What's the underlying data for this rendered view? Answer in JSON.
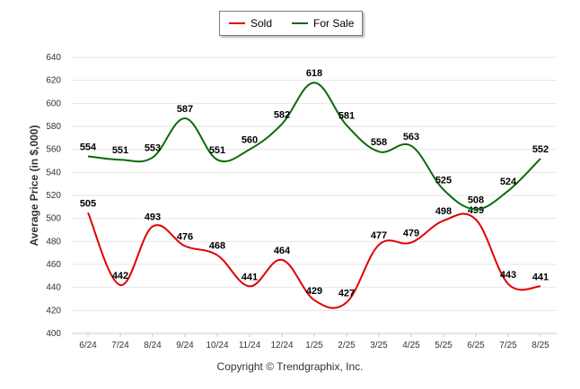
{
  "colors": {
    "sold": "#e00000",
    "for_sale": "#0b6a0b",
    "grid": "#e6e6e6"
  },
  "footer": {
    "copyright": "Copyright © Trendgraphix, Inc."
  },
  "chart_data": {
    "type": "line",
    "title": "",
    "xlabel": "",
    "ylabel": "Average Price (in $,000)",
    "categories": [
      "6/24",
      "7/24",
      "8/24",
      "9/24",
      "10/24",
      "11/24",
      "12/24",
      "1/25",
      "2/25",
      "3/25",
      "4/25",
      "5/25",
      "6/25",
      "7/25",
      "8/25"
    ],
    "ylim": [
      400,
      640
    ],
    "yticks": [
      400,
      420,
      440,
      460,
      480,
      500,
      520,
      540,
      560,
      580,
      600,
      620,
      640
    ],
    "grid": true,
    "legend_position": "top-center",
    "series": [
      {
        "name": "Sold",
        "values": [
          505,
          442,
          493,
          476,
          468,
          441,
          464,
          429,
          427,
          477,
          479,
          498,
          499,
          443,
          441
        ]
      },
      {
        "name": "For Sale",
        "values": [
          554,
          551,
          553,
          587,
          551,
          560,
          582,
          618,
          581,
          558,
          563,
          525,
          508,
          524,
          552
        ]
      }
    ]
  }
}
